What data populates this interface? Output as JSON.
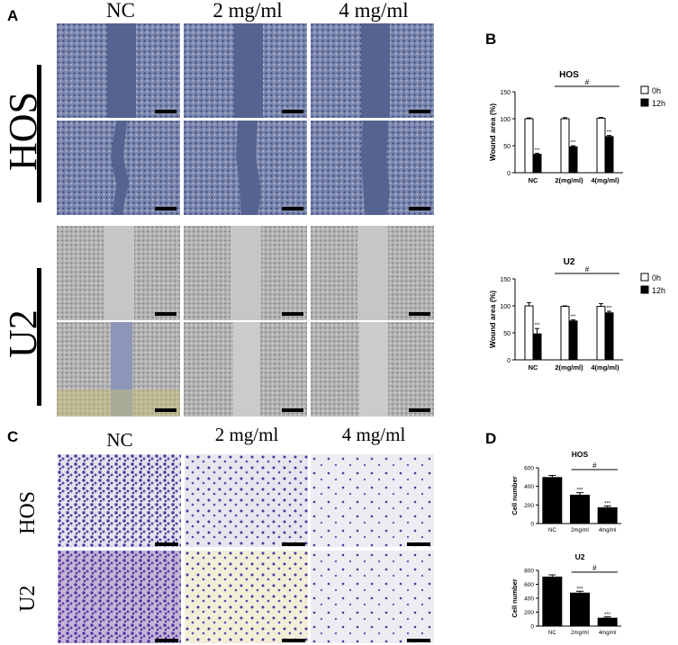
{
  "panels": {
    "A": {
      "letter": "A",
      "columns": [
        "NC",
        "2 mg/ml",
        "4 mg/ml"
      ],
      "rows": [
        "HOS",
        "U2"
      ]
    },
    "B": {
      "letter": "B"
    },
    "C": {
      "letter": "C",
      "columns": [
        "NC",
        "2 mg/ml",
        "4 mg/ml"
      ],
      "rows": [
        "HOS",
        "U2"
      ]
    },
    "D": {
      "letter": "D"
    }
  },
  "colors": {
    "hos_stain": "#3b4a86",
    "u2_phase": "#9a9a9a",
    "transwell_stain": "#5a3fa6",
    "bar_fill_0h": "#ffffff",
    "bar_fill_12h": "#000000"
  },
  "chart_data": [
    {
      "id": "B-HOS",
      "type": "bar",
      "title": "HOS",
      "ylabel": "Wound area (%)",
      "categories": [
        "NC",
        "2(mg/ml)",
        "4(mg/ml)"
      ],
      "ylim": [
        0,
        150
      ],
      "yticks": [
        "0",
        "50",
        "100",
        "150"
      ],
      "series": [
        {
          "name": "0h",
          "values": [
            100,
            100,
            101
          ],
          "errors": [
            1.5,
            2,
            1.5
          ]
        },
        {
          "name": "12h",
          "values": [
            34,
            48,
            67
          ],
          "errors": [
            2,
            2,
            2
          ]
        }
      ],
      "significance": [
        "***",
        "***",
        "***"
      ],
      "bracket_label": "#",
      "legend": "right"
    },
    {
      "id": "B-U2",
      "type": "bar",
      "title": "U2",
      "ylabel": "Wound area (%)",
      "categories": [
        "NC",
        "2(mg/ml)",
        "4(mg/ml)"
      ],
      "ylim": [
        0,
        150
      ],
      "yticks": [
        "0",
        "50",
        "100",
        "150"
      ],
      "series": [
        {
          "name": "0h",
          "values": [
            100,
            99,
            99
          ],
          "errors": [
            6,
            1,
            5
          ]
        },
        {
          "name": "12h",
          "values": [
            48,
            72,
            87
          ],
          "errors": [
            10,
            2,
            3
          ]
        }
      ],
      "significance": [
        "***",
        "***",
        "***"
      ],
      "bracket_label": "#",
      "legend": "right"
    },
    {
      "id": "D-HOS",
      "type": "bar",
      "title": "HOS",
      "ylabel": "Cell number",
      "categories": [
        "NC",
        "2mg/ml",
        "4mg/ml"
      ],
      "ylim": [
        0,
        600
      ],
      "yticks": [
        "0",
        "200",
        "400",
        "600"
      ],
      "series": [
        {
          "values": [
            500,
            310,
            175
          ],
          "errors": [
            18,
            22,
            14
          ]
        }
      ],
      "significance": [
        "",
        "***",
        "***"
      ],
      "bracket_label": "#"
    },
    {
      "id": "D-U2",
      "type": "bar",
      "title": "U2",
      "ylabel": "Cell number",
      "categories": [
        "NC",
        "2mg/ml",
        "4mg/ml"
      ],
      "ylim": [
        0,
        800
      ],
      "yticks": [
        "0",
        "200",
        "400",
        "600",
        "800"
      ],
      "series": [
        {
          "values": [
            710,
            480,
            120
          ],
          "errors": [
            25,
            20,
            12
          ]
        }
      ],
      "significance": [
        "",
        "***",
        "***"
      ],
      "bracket_label": "#"
    }
  ]
}
